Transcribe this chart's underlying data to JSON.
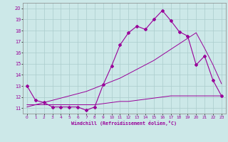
{
  "xlabel": "Windchill (Refroidissement éolien,°C)",
  "bg_color": "#cce8e8",
  "line_color": "#990099",
  "grid_color": "#aacccc",
  "xlim": [
    -0.5,
    23.5
  ],
  "ylim": [
    10.5,
    20.5
  ],
  "xticks": [
    0,
    1,
    2,
    3,
    4,
    5,
    6,
    7,
    8,
    9,
    10,
    11,
    12,
    13,
    14,
    15,
    16,
    17,
    18,
    19,
    20,
    21,
    22,
    23
  ],
  "yticks": [
    11,
    12,
    13,
    14,
    15,
    16,
    17,
    18,
    19,
    20
  ],
  "line1_x": [
    0,
    1,
    2,
    3,
    4,
    5,
    6,
    7,
    8,
    9,
    10,
    11,
    12,
    13,
    14,
    15,
    16,
    17,
    18,
    19,
    20,
    21,
    22,
    23
  ],
  "line1_y": [
    13.0,
    11.7,
    11.5,
    11.1,
    11.1,
    11.1,
    11.1,
    10.8,
    11.1,
    13.1,
    14.8,
    16.7,
    17.8,
    18.4,
    18.1,
    19.0,
    19.8,
    18.9,
    17.9,
    17.5,
    14.9,
    15.7,
    13.5,
    12.1
  ],
  "line2_x": [
    0,
    1,
    2,
    3,
    4,
    5,
    6,
    7,
    8,
    9,
    10,
    11,
    12,
    13,
    14,
    15,
    16,
    17,
    18,
    19,
    20,
    21,
    22,
    23
  ],
  "line2_y": [
    11.3,
    11.3,
    11.3,
    11.3,
    11.3,
    11.3,
    11.3,
    11.3,
    11.3,
    11.4,
    11.5,
    11.6,
    11.6,
    11.7,
    11.8,
    11.9,
    12.0,
    12.1,
    12.1,
    12.1,
    12.1,
    12.1,
    12.1,
    12.1
  ],
  "line3_x": [
    0,
    1,
    2,
    3,
    4,
    5,
    6,
    7,
    8,
    9,
    10,
    11,
    12,
    13,
    14,
    15,
    16,
    17,
    18,
    19,
    20,
    21,
    22,
    23
  ],
  "line3_y": [
    11.1,
    11.3,
    11.5,
    11.7,
    11.9,
    12.1,
    12.3,
    12.5,
    12.8,
    13.1,
    13.4,
    13.7,
    14.1,
    14.5,
    14.9,
    15.3,
    15.8,
    16.3,
    16.8,
    17.3,
    17.8,
    16.4,
    14.9,
    13.2
  ]
}
